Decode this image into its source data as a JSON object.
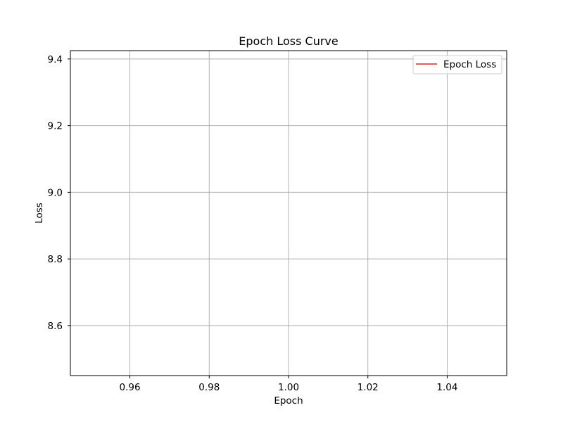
{
  "chart_data": {
    "type": "line",
    "title": "Epoch Loss Curve",
    "xlabel": "Epoch",
    "ylabel": "Loss",
    "xlim": [
      0.945,
      1.055
    ],
    "ylim": [
      8.45,
      9.425
    ],
    "xticks": [
      0.96,
      0.98,
      1.0,
      1.02,
      1.04
    ],
    "xtick_labels": [
      "0.96",
      "0.98",
      "1.00",
      "1.02",
      "1.04"
    ],
    "yticks": [
      8.6,
      8.8,
      9.0,
      9.2,
      9.4
    ],
    "ytick_labels": [
      "8.6",
      "8.8",
      "9.0",
      "9.2",
      "9.4"
    ],
    "grid": true,
    "legend_position": "top-right",
    "series": [
      {
        "name": "Epoch Loss",
        "color": "#d62728",
        "x": [],
        "y": []
      }
    ]
  }
}
